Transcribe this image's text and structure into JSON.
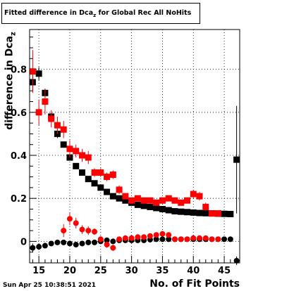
{
  "title": {
    "main": "Fitted difference in Dca",
    "sub": "z",
    "rest": " for Global Rec All NoHits"
  },
  "ylabel": {
    "main": "difference in Dca",
    "sub": "z"
  },
  "xlabel": "No. of Fit Points",
  "datestamp": "Sun Apr 25 10:38:51 2021",
  "colors": {
    "series_black": "#000000",
    "series_red": "#ff0000",
    "grid": "#000000",
    "axis": "#000000"
  },
  "chart_data": {
    "type": "scatter",
    "xlim": [
      13.5,
      47.5
    ],
    "ylim": [
      -0.1,
      0.985
    ],
    "grid": true,
    "x_ticks": [
      15,
      20,
      25,
      30,
      35,
      40,
      45
    ],
    "y_ticks": [
      0,
      0.2,
      0.4,
      0.6,
      0.8
    ],
    "series": [
      {
        "marker": "square",
        "color": "#000000",
        "x": [
          14,
          15,
          16,
          17,
          18,
          19,
          20,
          21,
          22,
          23,
          24,
          25,
          26,
          27,
          28,
          29,
          30,
          31,
          32,
          33,
          34,
          35,
          36,
          37,
          38,
          39,
          40,
          41,
          42,
          43,
          44,
          45,
          46,
          47
        ],
        "y": [
          0.74,
          0.78,
          0.69,
          0.58,
          0.5,
          0.45,
          0.39,
          0.35,
          0.32,
          0.29,
          0.27,
          0.25,
          0.23,
          0.21,
          0.2,
          0.19,
          0.18,
          0.17,
          0.165,
          0.16,
          0.155,
          0.15,
          0.145,
          0.14,
          0.138,
          0.136,
          0.134,
          0.132,
          0.131,
          0.13,
          0.129,
          0.128,
          0.127,
          0.38
        ],
        "err": [
          0.04,
          0.03,
          0.02,
          0.02,
          0.02,
          0.01,
          0.01,
          0.01,
          0.01,
          0.01,
          0.01,
          0.005,
          0.005,
          0.005,
          0.005,
          0.005,
          0.005,
          0.005,
          0.005,
          0.005,
          0.005,
          0.005,
          0.005,
          0.005,
          0.005,
          0.005,
          0.005,
          0.005,
          0.005,
          0.005,
          0.005,
          0.005,
          0.005,
          0.25
        ]
      },
      {
        "marker": "square",
        "color": "#ff0000",
        "x": [
          14,
          15,
          16,
          17,
          18,
          19,
          20,
          21,
          22,
          23,
          24,
          25,
          26,
          27,
          28,
          29,
          30,
          31,
          32,
          33,
          34,
          35,
          36,
          37,
          38,
          39,
          40,
          41,
          42,
          43,
          44
        ],
        "y": [
          0.79,
          0.6,
          0.65,
          0.57,
          0.54,
          0.52,
          0.43,
          0.42,
          0.4,
          0.39,
          0.32,
          0.32,
          0.3,
          0.31,
          0.24,
          0.21,
          0.19,
          0.2,
          0.19,
          0.19,
          0.18,
          0.19,
          0.2,
          0.19,
          0.18,
          0.19,
          0.22,
          0.21,
          0.16,
          0.13,
          0.13
        ],
        "err": [
          0.1,
          0.06,
          0.06,
          0.04,
          0.04,
          0.04,
          0.04,
          0.03,
          0.03,
          0.03,
          0.02,
          0.02,
          0.02,
          0.02,
          0.02,
          0.01,
          0.01,
          0.01,
          0.01,
          0.01,
          0.01,
          0.01,
          0.01,
          0.01,
          0.01,
          0.01,
          0.02,
          0.02,
          0.02,
          0.01,
          0.01
        ]
      },
      {
        "marker": "circle",
        "color": "#000000",
        "x": [
          14,
          15,
          16,
          17,
          18,
          19,
          20,
          21,
          22,
          23,
          24,
          25,
          26,
          27,
          28,
          29,
          30,
          31,
          32,
          33,
          34,
          35,
          36,
          37,
          38,
          39,
          40,
          41,
          42,
          43,
          44,
          45,
          46,
          47
        ],
        "y": [
          -0.03,
          -0.025,
          -0.02,
          -0.01,
          -0.005,
          -0.005,
          -0.01,
          -0.015,
          -0.01,
          -0.005,
          -0.005,
          0.0,
          0.005,
          0.0,
          0.005,
          0.005,
          0.005,
          0.005,
          0.005,
          0.008,
          0.01,
          0.01,
          0.01,
          0.01,
          0.01,
          0.01,
          0.01,
          0.01,
          0.01,
          0.01,
          0.01,
          0.01,
          0.01,
          -0.09
        ],
        "err": [
          0.02,
          0.015,
          0.01,
          0.01,
          0.01,
          0.01,
          0.005,
          0.005,
          0.005,
          0.005,
          0.005,
          0.005,
          0.005,
          0.005,
          0.005,
          0.005,
          0.005,
          0.005,
          0.005,
          0.005,
          0.005,
          0.005,
          0.005,
          0.005,
          0.005,
          0.005,
          0.005,
          0.005,
          0.005,
          0.005,
          0.005,
          0.005,
          0.005,
          0.02
        ]
      },
      {
        "marker": "circle",
        "color": "#ff0000",
        "x": [
          19,
          20,
          21,
          22,
          23,
          24,
          25,
          26,
          27,
          28,
          29,
          30,
          31,
          32,
          33,
          34,
          35,
          36,
          37,
          38,
          39,
          40,
          41,
          42,
          43,
          44
        ],
        "y": [
          0.05,
          0.105,
          0.085,
          0.055,
          0.05,
          0.045,
          0.01,
          -0.015,
          -0.03,
          0.01,
          0.015,
          0.015,
          0.02,
          0.02,
          0.025,
          0.03,
          0.035,
          0.03,
          0.01,
          0.01,
          0.01,
          0.015,
          0.015,
          0.015,
          0.01,
          0.01
        ],
        "err": [
          0.03,
          0.03,
          0.025,
          0.02,
          0.02,
          0.015,
          0.015,
          0.015,
          0.015,
          0.01,
          0.01,
          0.01,
          0.01,
          0.01,
          0.01,
          0.01,
          0.01,
          0.01,
          0.01,
          0.01,
          0.01,
          0.01,
          0.01,
          0.01,
          0.01,
          0.01
        ]
      }
    ]
  }
}
